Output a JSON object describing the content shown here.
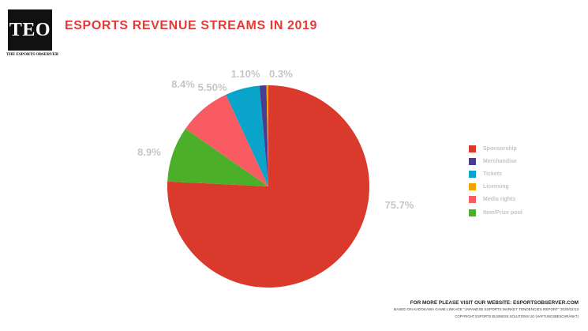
{
  "logo": {
    "mark": "TEO",
    "subtitle": "THE ESPORTS OBSERVER"
  },
  "chart_data": {
    "type": "pie",
    "title": "ESPORTS REVENUE STREAMS IN 2019",
    "slices": [
      {
        "name": "Sponsorship",
        "value": 75.7,
        "label": "75.7%",
        "color": "#d93a2b"
      },
      {
        "name": "Merchandise",
        "value": 1.1,
        "label": "1.10%",
        "color": "#4a3d8f"
      },
      {
        "name": "Tickets",
        "value": 5.5,
        "label": "5.50%",
        "color": "#0aa3c9"
      },
      {
        "name": "Licensing",
        "value": 0.3,
        "label": "0.3%",
        "color": "#f0a500"
      },
      {
        "name": "Media rights",
        "value": 8.4,
        "label": "8.4%",
        "color": "#f95b63"
      },
      {
        "name": "Item/Prize pool",
        "value": 8.9,
        "label": "8.9%",
        "color": "#4caf2a"
      }
    ],
    "legend_position": "right"
  },
  "footer": {
    "line1": "FOR MORE PLEASE VISIT OUR WEBSITE: ESPORTSOBSERVER.COM",
    "line2": "BASED ON KADOKAWA GAME LINKAGE \"JAPANESE ESPORTS MARKET TENDENCIES REPORT\" 2020/02/13",
    "line3": "COPYRIGHT ESPORTS BUSINESS SOLUTIONS UG (HAFTUNGSBESCHRÄNKT)"
  }
}
